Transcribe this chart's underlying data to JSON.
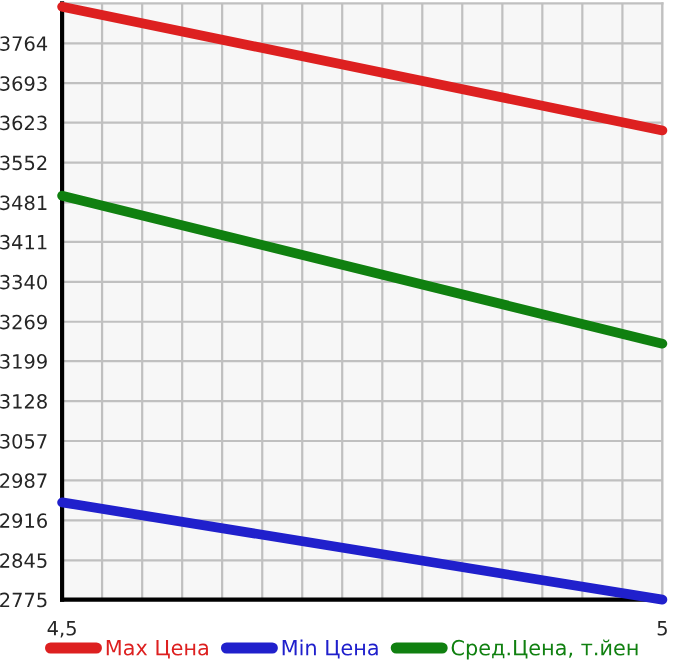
{
  "chart_data": {
    "type": "line",
    "x": [
      4.5,
      5
    ],
    "series": [
      {
        "name": "Max Цена",
        "color": "#dd2020",
        "values": [
          3829,
          3609
        ]
      },
      {
        "name": "Min Цена",
        "color": "#2020cc",
        "values": [
          2948,
          2775
        ]
      },
      {
        "name": "Сред.Цена, т.йен",
        "color": "#108010",
        "values": [
          3493,
          3230
        ]
      }
    ],
    "xlim": [
      4.5,
      5
    ],
    "xticks": [
      {
        "value": 4.5,
        "label": "4,5"
      },
      {
        "value": 4.5333,
        "label": null
      },
      {
        "value": 4.5667,
        "label": null
      },
      {
        "value": 4.6,
        "label": null
      },
      {
        "value": 4.6333,
        "label": null
      },
      {
        "value": 4.6667,
        "label": null
      },
      {
        "value": 4.7,
        "label": null
      },
      {
        "value": 4.7333,
        "label": null
      },
      {
        "value": 4.7667,
        "label": null
      },
      {
        "value": 4.8,
        "label": null
      },
      {
        "value": 4.8333,
        "label": null
      },
      {
        "value": 4.8667,
        "label": null
      },
      {
        "value": 4.9,
        "label": null
      },
      {
        "value": 4.9333,
        "label": null
      },
      {
        "value": 4.9667,
        "label": null
      },
      {
        "value": 5,
        "label": "5"
      }
    ],
    "ylim": [
      2775,
      3835
    ],
    "yticks": [
      2775,
      2845,
      2916,
      2987,
      3057,
      3128,
      3199,
      3269,
      3340,
      3411,
      3481,
      3552,
      3623,
      3693,
      3764
    ],
    "grid": true,
    "legend": "bottom",
    "marker": "none",
    "line_style": "solid"
  }
}
